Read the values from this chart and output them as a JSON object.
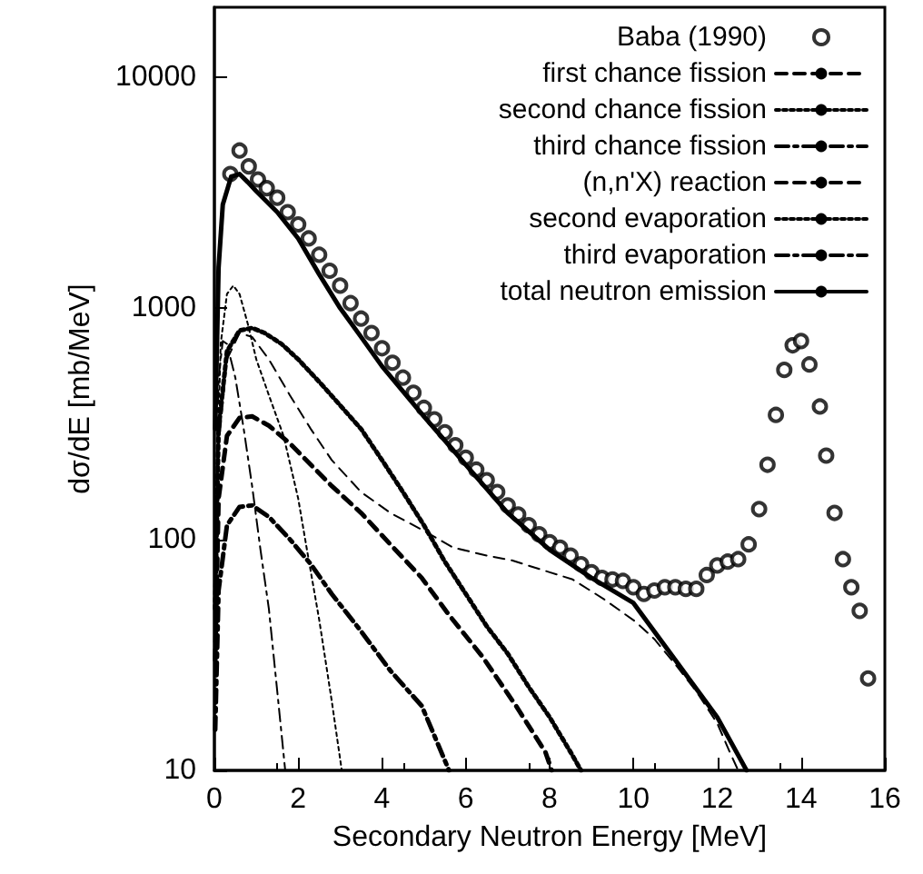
{
  "chart_data": {
    "type": "line",
    "xlabel": "Secondary Neutron Energy [MeV]",
    "ylabel": "dσ/dE [mb/MeV]",
    "xlim": [
      0,
      16
    ],
    "xticks": [
      0,
      2,
      4,
      6,
      8,
      10,
      12,
      14,
      16
    ],
    "ylim": [
      10,
      20000
    ],
    "yticks": [
      10,
      100,
      1000,
      10000
    ],
    "log": "y",
    "grid": false,
    "legend": "top right",
    "series": [
      {
        "name": "Baba (1990)",
        "type": "scatter",
        "marker": "circle",
        "color": "#000000",
        "x": [
          0.38,
          0.6,
          0.82,
          1.04,
          1.25,
          1.5,
          1.75,
          2.0,
          2.25,
          2.5,
          2.75,
          3.0,
          3.25,
          3.5,
          3.75,
          4.0,
          4.25,
          4.5,
          4.75,
          5.0,
          5.25,
          5.5,
          5.75,
          6.0,
          6.25,
          6.5,
          6.75,
          7.0,
          7.25,
          7.5,
          7.75,
          8.0,
          8.25,
          8.5,
          8.75,
          9.0,
          9.25,
          9.5,
          9.75,
          10.0,
          10.25,
          10.5,
          10.75,
          11.0,
          11.25,
          11.5,
          11.75,
          12.0,
          12.25,
          12.5,
          12.75,
          13.0,
          13.2,
          13.4,
          13.6,
          13.8,
          14.0,
          14.2,
          14.45,
          14.6,
          14.8,
          15.0,
          15.2,
          15.4,
          15.6
        ],
        "values": [
          3800,
          4800,
          4100,
          3600,
          3300,
          3000,
          2600,
          2300,
          2000,
          1700,
          1450,
          1250,
          1050,
          900,
          780,
          670,
          580,
          500,
          430,
          370,
          330,
          290,
          255,
          225,
          200,
          180,
          160,
          140,
          128,
          115,
          105,
          97,
          92,
          85,
          78,
          72,
          68,
          67,
          66,
          62,
          58,
          60,
          62,
          62,
          61,
          61,
          70,
          77,
          80,
          82,
          95,
          135,
          210,
          345,
          540,
          690,
          720,
          570,
          375,
          230,
          130,
          82,
          62,
          49,
          25
        ]
      },
      {
        "name": "first chance fission",
        "line_style": "dashed",
        "color": "#000000",
        "x": [
          0.02,
          0.1,
          0.3,
          0.6,
          0.9,
          1.3,
          1.8,
          2.3,
          2.8,
          3.5,
          4.2,
          4.95,
          5.6,
          6.4,
          7.2,
          7.9,
          8.05
        ],
        "values": [
          30,
          150,
          280,
          335,
          340,
          310,
          260,
          210,
          170,
          130,
          95,
          68,
          47,
          31,
          19,
          12,
          10
        ]
      },
      {
        "name": "second chance fission",
        "line_style": "dotted",
        "color": "#000000",
        "x": [
          0.02,
          0.1,
          0.3,
          0.6,
          0.9,
          1.2,
          1.6,
          2.0,
          2.5,
          3.0,
          3.5,
          4.0,
          4.5,
          5.0,
          5.5,
          6.0,
          6.5,
          7.0,
          7.5,
          8.0,
          8.5,
          8.75
        ],
        "values": [
          50,
          300,
          650,
          800,
          820,
          780,
          700,
          600,
          480,
          380,
          300,
          220,
          160,
          115,
          80,
          58,
          42,
          32,
          23,
          17,
          12,
          10
        ]
      },
      {
        "name": "third chance fission",
        "line_style": "dashdot",
        "color": "#000000",
        "x": [
          0.02,
          0.1,
          0.3,
          0.6,
          0.9,
          1.3,
          1.8,
          2.3,
          2.8,
          3.5,
          4.2,
          4.95,
          5.6
        ],
        "values": [
          15,
          60,
          115,
          138,
          140,
          125,
          100,
          78,
          58,
          40,
          27,
          19,
          10
        ]
      },
      {
        "name": "(n,n'X) reaction",
        "line_style": "dashed",
        "color": "#000000",
        "x": [
          0.02,
          0.1,
          0.3,
          0.6,
          0.9,
          1.3,
          1.8,
          2.3,
          2.8,
          3.5,
          4.2,
          4.95,
          5.7,
          6.5,
          7.1,
          8.0,
          8.55,
          9.3,
          10.05,
          10.5,
          11.05,
          11.5,
          12.0,
          12.3,
          12.5
        ],
        "values": [
          40,
          250,
          600,
          780,
          750,
          600,
          420,
          300,
          220,
          160,
          130,
          110,
          92,
          85,
          81,
          72,
          67,
          55,
          44,
          37,
          28,
          22,
          16,
          12,
          10
        ]
      },
      {
        "name": "second evaporation",
        "line_style": "dotted",
        "color": "#000000",
        "x": [
          0.05,
          0.15,
          0.3,
          0.45,
          0.6,
          0.8,
          1.0,
          1.3,
          1.65,
          2.0,
          2.2,
          2.5,
          2.8,
          3.04
        ],
        "values": [
          150,
          700,
          1150,
          1250,
          1150,
          850,
          600,
          420,
          280,
          150,
          92,
          45,
          20,
          10
        ]
      },
      {
        "name": "third evaporation",
        "line_style": "dashdot",
        "color": "#000000",
        "x": [
          0.02,
          0.1,
          0.2,
          0.3,
          0.5,
          0.7,
          0.9,
          1.1,
          1.3,
          1.5,
          1.69
        ],
        "values": [
          100,
          500,
          720,
          700,
          500,
          300,
          170,
          90,
          50,
          22,
          10
        ]
      },
      {
        "name": "total neutron emission",
        "line_style": "solid",
        "color": "#000000",
        "x": [
          0.02,
          0.1,
          0.2,
          0.4,
          0.6,
          0.8,
          1.0,
          1.5,
          2.0,
          2.5,
          3.0,
          3.5,
          4.0,
          5.0,
          6.0,
          7.0,
          8.0,
          9.0,
          10.0,
          11.0,
          12.0,
          12.7
        ],
        "values": [
          300,
          1500,
          2800,
          3700,
          3800,
          3500,
          3200,
          2600,
          2000,
          1400,
          1000,
          750,
          560,
          340,
          210,
          130,
          90,
          68,
          53,
          30,
          17,
          10
        ]
      }
    ]
  }
}
